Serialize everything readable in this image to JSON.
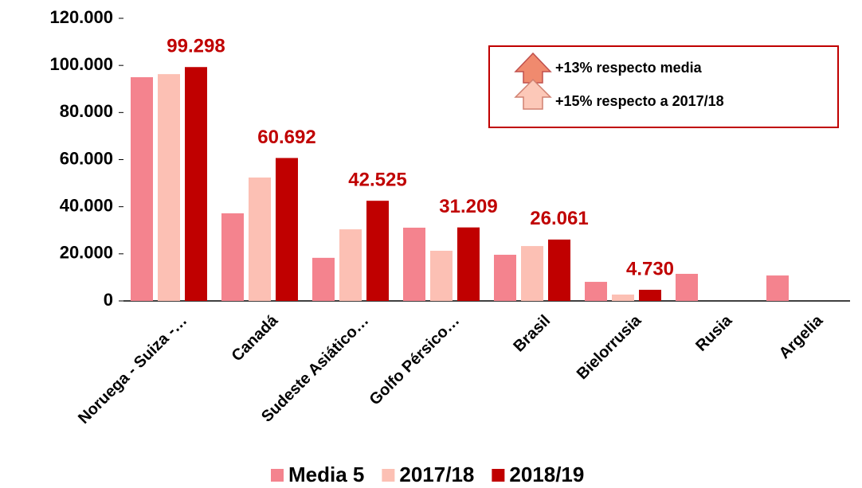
{
  "chart_data": {
    "type": "bar",
    "categories": [
      "Noruega - Suiza -…",
      "Canadá",
      "Sudeste Asiático…",
      "Golfo Pérsico…",
      "Brasil",
      "Bielorrusia",
      "Rusia",
      "Argelia"
    ],
    "series": [
      {
        "name": "Media 5",
        "color": "#f4838e",
        "values": [
          95000,
          37200,
          18300,
          31100,
          19600,
          8100,
          11500,
          10800
        ]
      },
      {
        "name": "2017/18",
        "color": "#fcc0b4",
        "values": [
          96300,
          52400,
          30400,
          21300,
          23300,
          2700,
          null,
          null
        ]
      },
      {
        "name": "2018/19",
        "color": "#c00000",
        "values": [
          99298,
          60692,
          42525,
          31209,
          26061,
          4730,
          null,
          null
        ],
        "value_labels": [
          "99.298",
          "60.692",
          "42.525",
          "31.209",
          "26.061",
          "4.730",
          null,
          null
        ]
      }
    ],
    "ylim": [
      0,
      120000
    ],
    "yticks": [
      0,
      {
        "value": 20000,
        "label": "20.000"
      },
      {
        "value": 40000,
        "label": "40.000"
      },
      {
        "value": 60000,
        "label": "60.000"
      },
      {
        "value": 80000,
        "label": "80.000"
      },
      {
        "value": 100000,
        "label": "100.000"
      },
      {
        "value": 120000,
        "label": "120.000"
      }
    ],
    "grid": false,
    "annotations": [
      "+13% respecto media",
      "+15% respecto a 2017/18"
    ]
  }
}
